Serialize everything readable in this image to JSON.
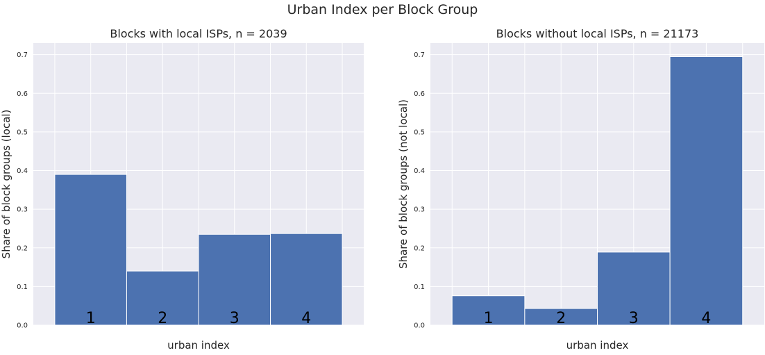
{
  "figure": {
    "suptitle": "Urban Index per Block Group"
  },
  "colors": {
    "plot_background": "#eaeaf2",
    "grid": "#ffffff",
    "bar_fill": "#4c72b0",
    "bar_edge": "#ffffff",
    "text": "#262626",
    "bar_label": "#000000"
  },
  "chart_data": [
    {
      "type": "bar",
      "title": "Blocks with local ISPs, n = 2039",
      "xlabel": "urban index",
      "ylabel": "Share of block groups (local)",
      "categories": [
        "1",
        "2",
        "3",
        "4"
      ],
      "values": [
        0.39,
        0.14,
        0.235,
        0.237
      ],
      "ylim": [
        0,
        0.73
      ],
      "yticks": [
        "0.0",
        "0.1",
        "0.2",
        "0.3",
        "0.4",
        "0.5",
        "0.6",
        "0.7"
      ],
      "xticks_shown": false,
      "grid": true
    },
    {
      "type": "bar",
      "title": "Blocks without local ISPs, n = 21173",
      "xlabel": "urban index",
      "ylabel": "Share of block groups (not local)",
      "categories": [
        "1",
        "2",
        "3",
        "4"
      ],
      "values": [
        0.076,
        0.043,
        0.189,
        0.695
      ],
      "ylim": [
        0,
        0.73
      ],
      "yticks": [
        "0.0",
        "0.1",
        "0.2",
        "0.3",
        "0.4",
        "0.5",
        "0.6",
        "0.7"
      ],
      "xticks_shown": false,
      "grid": true
    }
  ]
}
